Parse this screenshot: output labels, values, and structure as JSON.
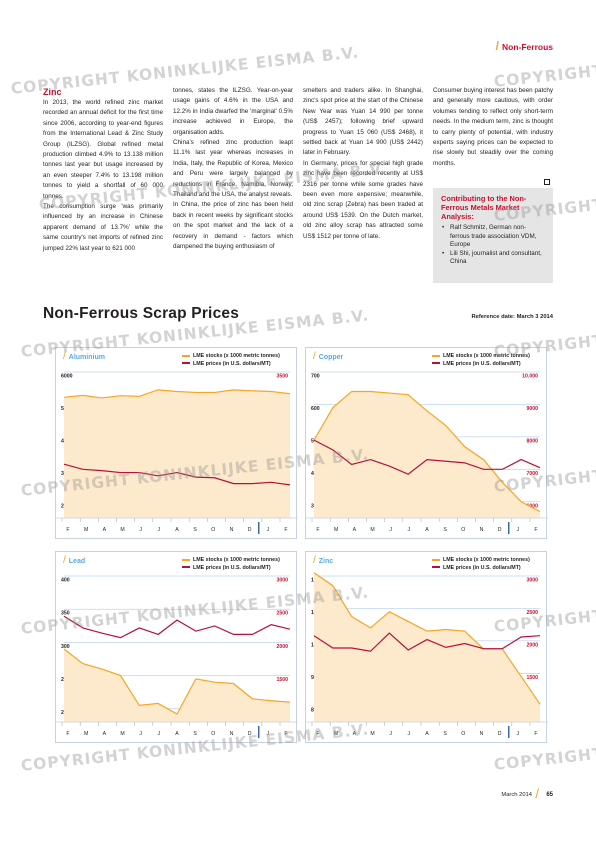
{
  "header": {
    "section": "Non-Ferrous"
  },
  "article": {
    "title": "Zinc",
    "columns": [
      "In 2013, the world refined zinc market recorded an annual deficit for the first time since 2006, according to year-end figures from the International Lead & Zinc Study Group (ILZSG). Global refined metal production climbed 4.9% to 13.138 million tonnes last year but usage increased by an even steeper 7.4% to 13.198 million tonnes to yield a shortfall of 60 000 tonnes.|The consumption surge 'was primarily influenced by an increase in Chinese apparent demand of 13.7%' while the same country's net imports of refined zinc jumped 22% last year to 621 000",
      "tonnes, states the ILZSG. Year-on-year usage gains of 4.6% in the USA and 12.2% in India dwarfed the 'marginal' 0.5% increase achieved in Europe, the organisation adds.|China's refined zinc production leapt 11.1% last year whereas increases in India, Italy, the Republic of Korea, Mexico and Peru were largely balanced by reductions in France, Namibia, Norway, Thailand and the USA, the analyst reveals.|In China, the price of zinc has been held back in recent weeks by significant stocks on the spot market and the lack of a recovery in demand - factors which dampened the buying enthusiasm of",
      "smelters and traders alike. In Shanghai, zinc's spot price at the start of the Chinese New Year was Yuan 14 990 per tonne (US$ 2457); following brief upward progress to Yuan 15 060 (US$ 2468), it settled back at Yuan 14 900 (US$ 2442) later in February.|In Germany, prices for special high grade zinc have been recorded recently at US$ 2316 per tonne while some grades have been even more expensive; meanwhile, old zinc scrap (Zebra) has been traded at around US$ 1539. On the Dutch market, old zinc alloy scrap has attracted some US$ 1512 per tonne of late.",
      "Consumer buying interest has been patchy and generally more cautious, with order volumes tending to reflect only short-term needs. In the medium term, zinc is thought to carry plenty of potential, with industry experts saying prices can be expected to rise slowly but steadily over the coming months."
    ]
  },
  "contrib": {
    "title": "Contributing to the Non-Ferrous Metals Market Analysis:",
    "items": [
      "Ralf Schmitz, German non-ferrous trade association VDM, Europe",
      "Lili Shi, journalist and consultant, China"
    ]
  },
  "section": {
    "title": "Non-Ferrous Scrap Prices",
    "reference": "Reference date: March 3 2014"
  },
  "legend": {
    "stocks": "LME stocks (x 1000 metric tonnes)",
    "prices": "LME prices (in U.S. dollars/MT)"
  },
  "colors": {
    "stocks_line": "#f5a623",
    "stocks_fill": "#fde9cb",
    "prices_line": "#b5123b",
    "accent": "#c8102e",
    "title_blue": "#5da8e0"
  },
  "chart_data": [
    {
      "type": "area",
      "title": "Aluminium",
      "months": [
        "F",
        "M",
        "A",
        "M",
        "J",
        "J",
        "A",
        "S",
        "O",
        "N",
        "D",
        "J",
        "F"
      ],
      "left_axis": {
        "ticks": [
          "6000",
          "5000",
          "4000",
          "3000",
          "2000"
        ],
        "range": [
          1500,
          6000
        ]
      },
      "right_axis": {
        "ticks": [
          "3500",
          "3000",
          "2500",
          "2000",
          "1500"
        ],
        "range": [
          1250,
          3500
        ]
      },
      "series": [
        {
          "name": "LME stocks (x 1000 metric tonnes)",
          "axis": "left",
          "values": [
            5220,
            5280,
            5200,
            5270,
            5250,
            5450,
            5400,
            5370,
            5370,
            5450,
            5420,
            5400,
            5330
          ]
        },
        {
          "name": "LME prices (in U.S. dollars/MT)",
          "axis": "right",
          "values": [
            2080,
            2000,
            1980,
            1950,
            1950,
            1900,
            1950,
            1880,
            1870,
            1780,
            1780,
            1800,
            1760
          ]
        }
      ]
    },
    {
      "type": "area",
      "title": "Copper",
      "months": [
        "F",
        "M",
        "A",
        "M",
        "J",
        "J",
        "A",
        "S",
        "O",
        "N",
        "D",
        "J",
        "F"
      ],
      "left_axis": {
        "ticks": [
          "700",
          "600",
          "500",
          "400",
          "300"
        ],
        "range": [
          250,
          700
        ]
      },
      "right_axis": {
        "ticks": [
          "10.000",
          "9000",
          "8000",
          "7000",
          "6000"
        ],
        "range": [
          5500,
          10000
        ]
      },
      "series": [
        {
          "name": "LME stocks (x 1000 metric tonnes)",
          "axis": "left",
          "values": [
            490,
            590,
            640,
            640,
            635,
            630,
            580,
            535,
            470,
            430,
            360,
            300,
            270
          ]
        },
        {
          "name": "LME prices (in U.S. dollars/MT)",
          "axis": "right",
          "values": [
            7900,
            7600,
            7150,
            7300,
            7100,
            6850,
            7300,
            7250,
            7200,
            7000,
            7000,
            7300,
            7050
          ]
        }
      ]
    },
    {
      "type": "area",
      "title": "Lead",
      "months": [
        "F",
        "M",
        "A",
        "M",
        "J",
        "J",
        "A",
        "S",
        "O",
        "N",
        "D",
        "J",
        "F"
      ],
      "left_axis": {
        "ticks": [
          "400",
          "350",
          "300",
          "250",
          "200"
        ],
        "range": [
          180,
          400
        ]
      },
      "right_axis": {
        "ticks": [
          "3000",
          "2500",
          "2000",
          "1500",
          "1000"
        ],
        "range": [
          750,
          3000
        ]
      },
      "series": [
        {
          "name": "LME stocks (x 1000 metric tonnes)",
          "axis": "left",
          "values": [
            290,
            268,
            260,
            250,
            205,
            208,
            192,
            245,
            240,
            238,
            215,
            212,
            210
          ]
        },
        {
          "name": "LME prices (in U.S. dollars/MT)",
          "axis": "right",
          "values": [
            2380,
            2200,
            2120,
            2050,
            2200,
            2100,
            2320,
            2150,
            2230,
            2100,
            2100,
            2250,
            2180
          ]
        }
      ]
    },
    {
      "type": "area",
      "title": "Zinc",
      "months": [
        "F",
        "M",
        "A",
        "M",
        "J",
        "J",
        "A",
        "S",
        "O",
        "N",
        "D",
        "J",
        "F"
      ],
      "left_axis": {
        "ticks": [
          "1200",
          "1100",
          "1000",
          "900",
          "800"
        ],
        "range": [
          750,
          1200
        ]
      },
      "right_axis": {
        "ticks": [
          "3000",
          "2500",
          "2000",
          "1500",
          "1000"
        ],
        "range": [
          750,
          3000
        ]
      },
      "series": [
        {
          "name": "LME stocks (x 1000 metric tonnes)",
          "axis": "left",
          "values": [
            1210,
            1170,
            1075,
            1040,
            1090,
            1060,
            1030,
            1035,
            1030,
            975,
            975,
            890,
            805
          ]
        },
        {
          "name": "LME prices (in U.S. dollars/MT)",
          "axis": "right",
          "values": [
            2080,
            1890,
            1890,
            1840,
            2120,
            1860,
            2020,
            1900,
            1960,
            1880,
            1880,
            2060,
            2080
          ]
        }
      ]
    }
  ],
  "watermark": {
    "text": "COPYRIGHT KONINKLIJKE EISMA B.V.",
    "short": "COPYRIGHT"
  },
  "footer": {
    "date": "March 2014",
    "page": "65"
  }
}
